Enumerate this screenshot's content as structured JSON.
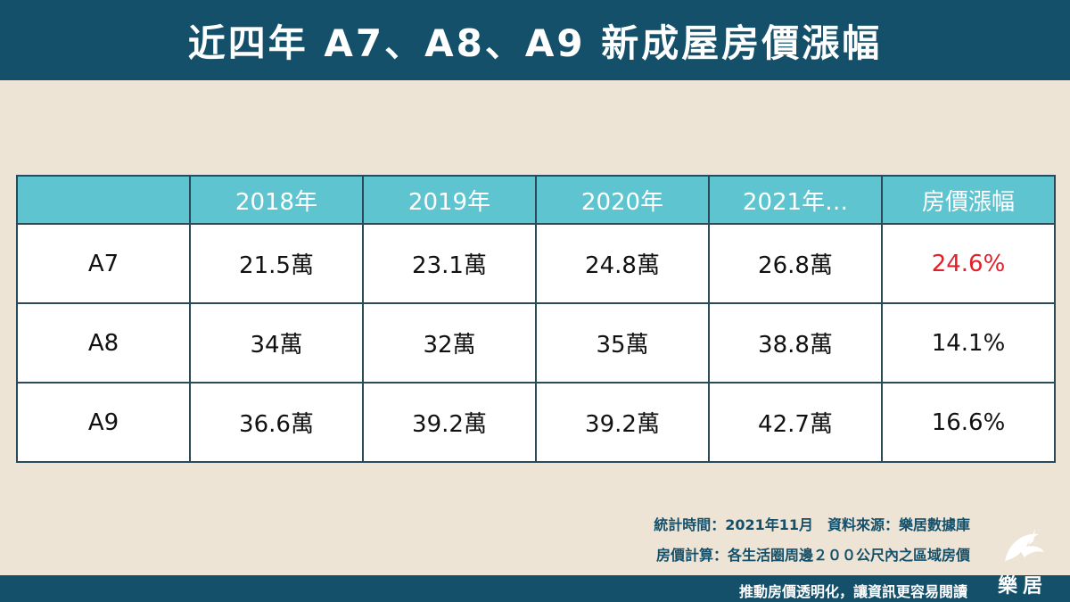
{
  "title": "近四年 A7、A8、A9 新成屋房價漲幅",
  "chart_data": {
    "type": "table",
    "columns": [
      "",
      "2018年",
      "2019年",
      "2020年",
      "2021年…",
      "房價漲幅"
    ],
    "rows": [
      {
        "label": "A7",
        "values": [
          "21.5萬",
          "23.1萬",
          "24.8萬",
          "26.8萬"
        ],
        "change": "24.6%",
        "highlight": true
      },
      {
        "label": "A8",
        "values": [
          "34萬",
          "32萬",
          "35萬",
          "38.8萬"
        ],
        "change": "14.1%",
        "highlight": false
      },
      {
        "label": "A9",
        "values": [
          "36.6萬",
          "39.2萬",
          "39.2萬",
          "42.7萬"
        ],
        "change": "16.6%",
        "highlight": false
      }
    ]
  },
  "notes": {
    "line1": "統計時間：2021年11月　資料來源：樂居數據庫",
    "line2": "房價計算：各生活圈周邊２００公尺內之區域房價"
  },
  "footer": {
    "slogan": "推動房價透明化，讓資訊更容易閱讀"
  },
  "logo": {
    "text": "樂居",
    "icon": "dolphin-logo-icon"
  },
  "colors": {
    "header_bar": "#14506a",
    "table_header": "#5ec5d0",
    "background": "#ede4d6",
    "highlight": "#e3202a"
  }
}
